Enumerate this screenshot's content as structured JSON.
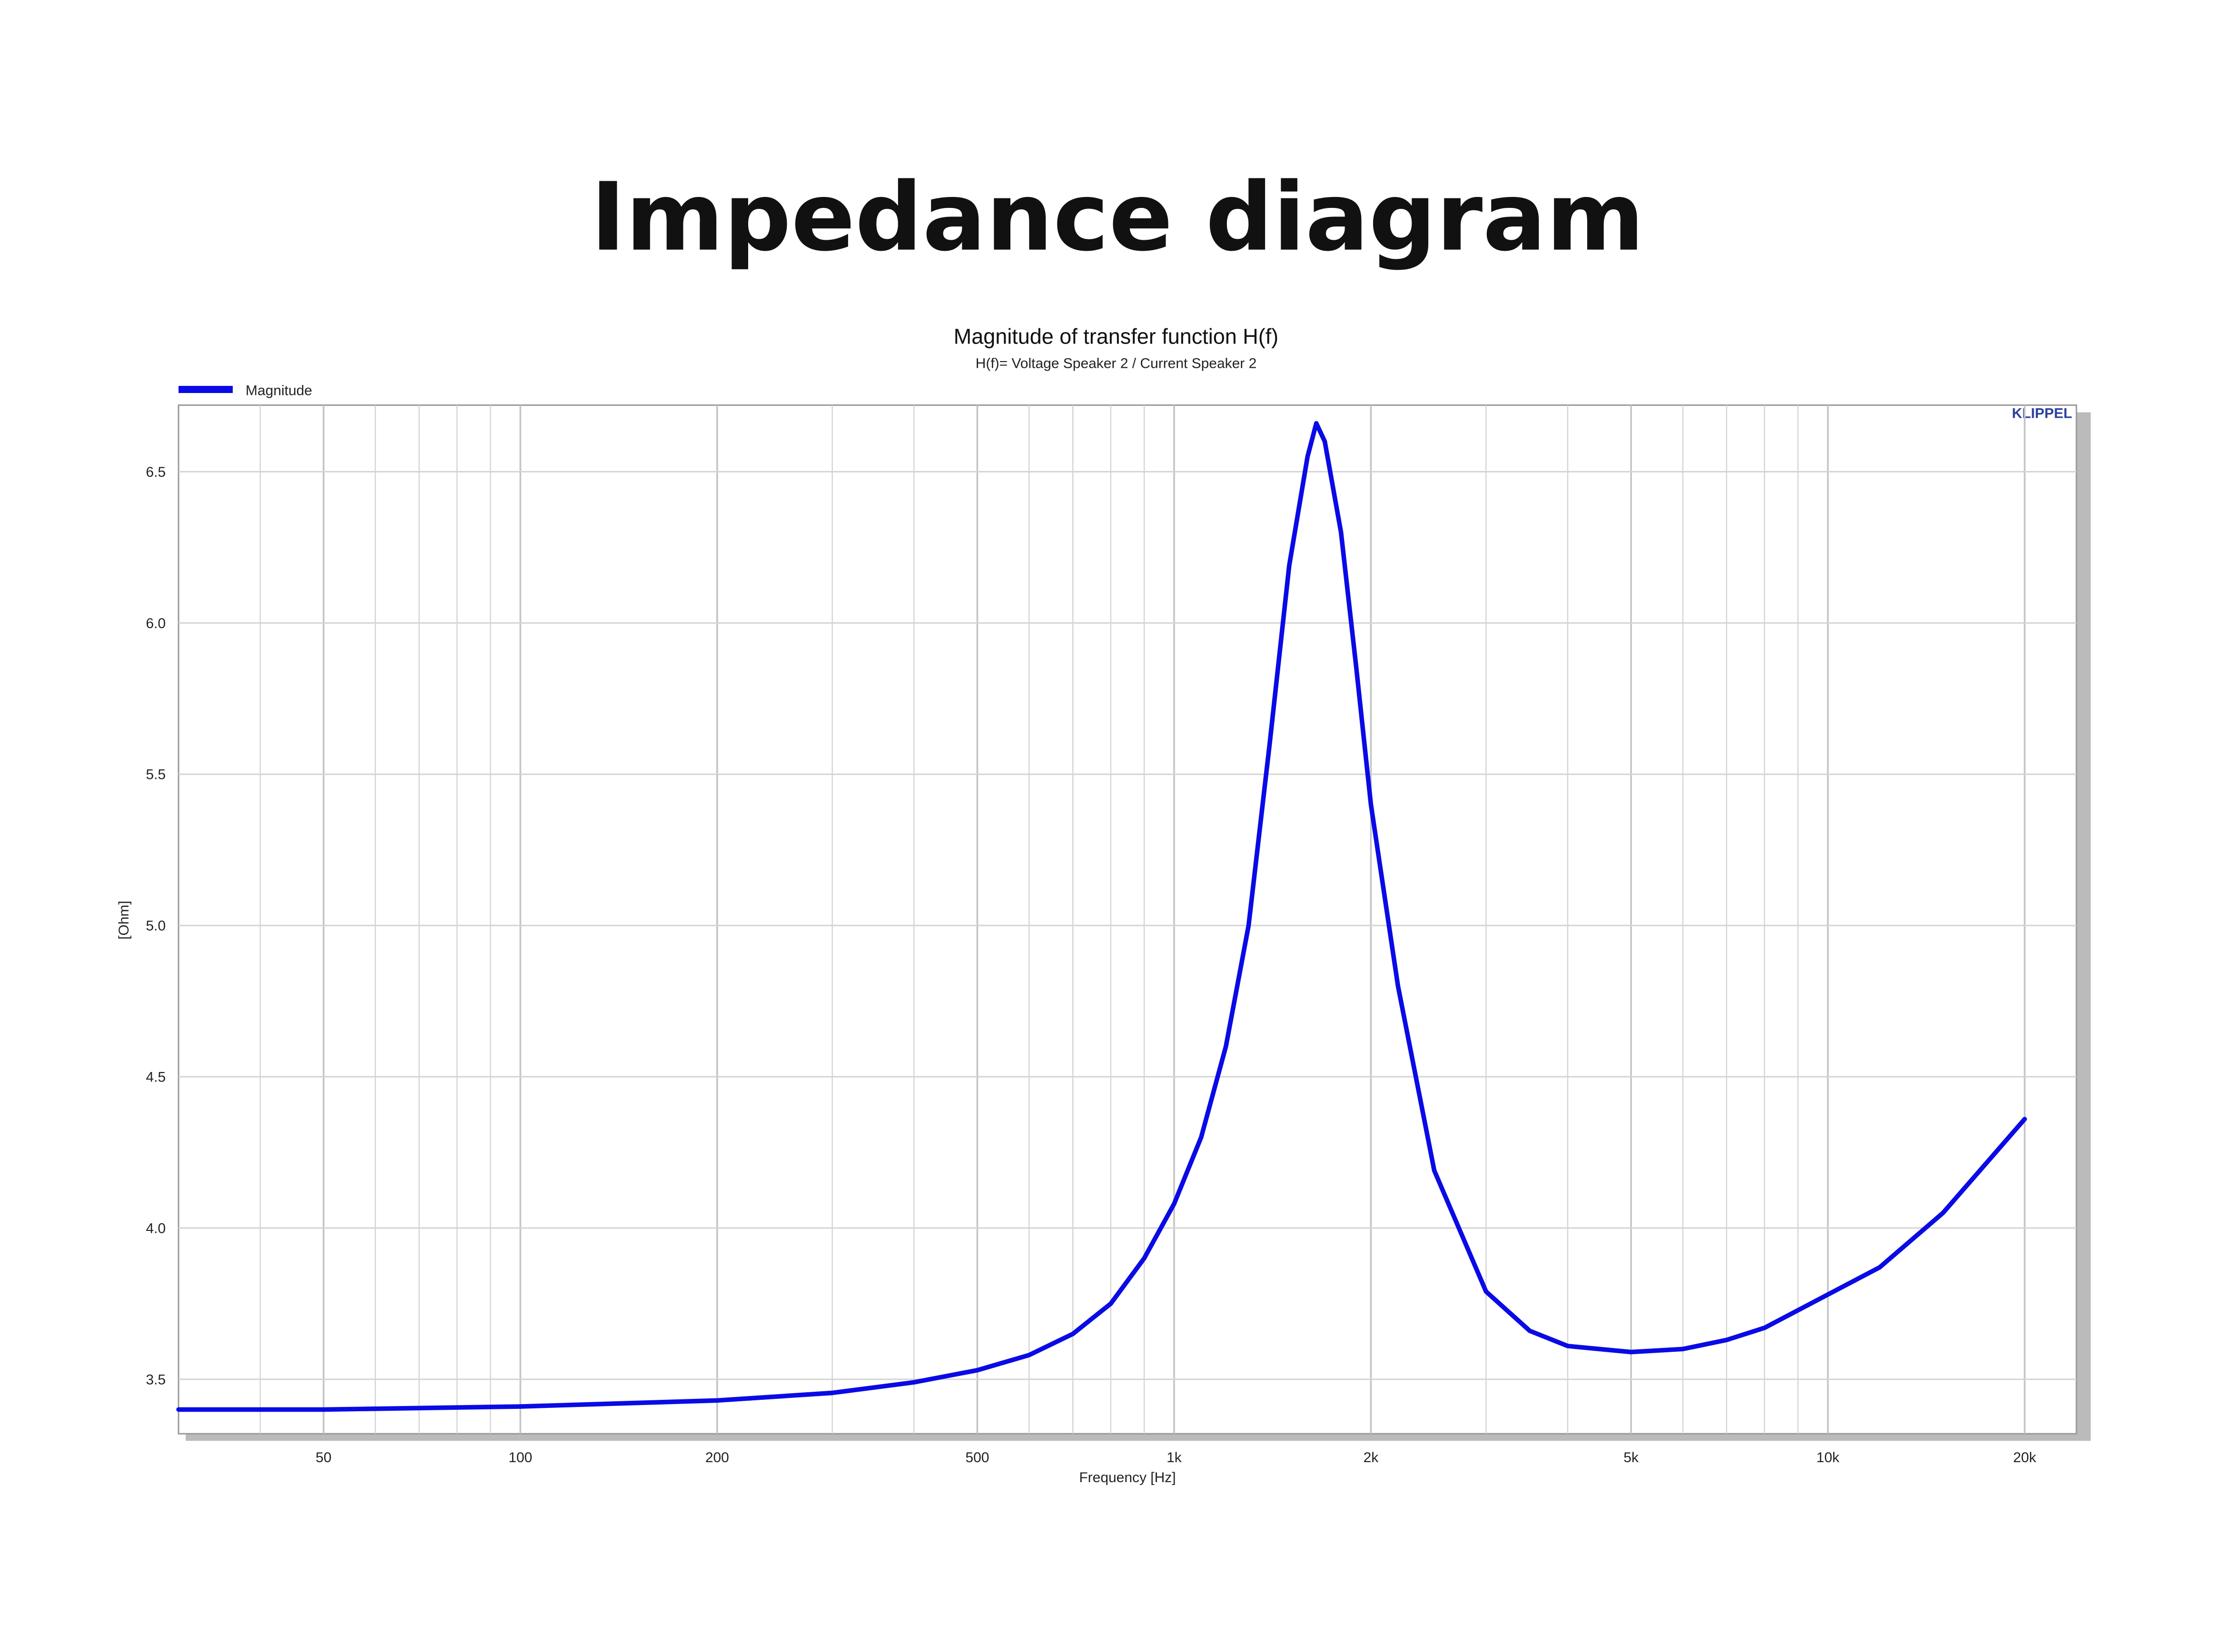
{
  "heading": "Impedance diagram",
  "chart_data": {
    "type": "line",
    "title": "Magnitude of transfer function H(f)",
    "subtitle": "H(f)= Voltage Speaker 2 / Current Speaker 2",
    "watermark": "KLIPPEL",
    "xlabel": "Frequency [Hz]",
    "ylabel": "[Ohm]",
    "xscale": "log",
    "grid": true,
    "legend": "top-left",
    "x": [
      30,
      50,
      100,
      200,
      300,
      400,
      500,
      600,
      700,
      800,
      900,
      1000,
      1100,
      1200,
      1300,
      1400,
      1500,
      1600,
      1650,
      1700,
      1800,
      1900,
      2000,
      2200,
      2500,
      3000,
      3500,
      4000,
      5000,
      6000,
      7000,
      8000,
      10000,
      12000,
      15000,
      20000
    ],
    "series": [
      {
        "name": "Magnitude",
        "color": "#0a0ae6",
        "values": [
          3.4,
          3.4,
          3.41,
          3.43,
          3.455,
          3.49,
          3.53,
          3.58,
          3.65,
          3.75,
          3.9,
          4.08,
          4.3,
          4.6,
          5.0,
          5.6,
          6.19,
          6.55,
          6.66,
          6.6,
          6.3,
          5.85,
          5.4,
          4.8,
          4.19,
          3.79,
          3.66,
          3.61,
          3.59,
          3.6,
          3.63,
          3.67,
          3.78,
          3.87,
          4.05,
          4.36
        ]
      }
    ],
    "xlim": [
      30,
      24000
    ],
    "ylim": [
      3.32,
      6.72
    ],
    "xticks": [
      50,
      100,
      200,
      500,
      {
        "value": 1000,
        "label": "1k"
      },
      {
        "value": 2000,
        "label": "2k"
      },
      {
        "value": 5000,
        "label": "5k"
      },
      {
        "value": 10000,
        "label": "10k"
      },
      {
        "value": 20000,
        "label": "20k"
      }
    ],
    "xminorticks": [
      40,
      60,
      70,
      80,
      90,
      300,
      400,
      600,
      700,
      800,
      900,
      3000,
      4000,
      6000,
      7000,
      8000,
      9000
    ],
    "yticks": [
      3.5,
      {
        "value": 4,
        "label": "4.0"
      },
      4.5,
      {
        "value": 5,
        "label": "5.0"
      },
      5.5,
      {
        "value": 6,
        "label": "6.0"
      },
      6.5
    ]
  }
}
